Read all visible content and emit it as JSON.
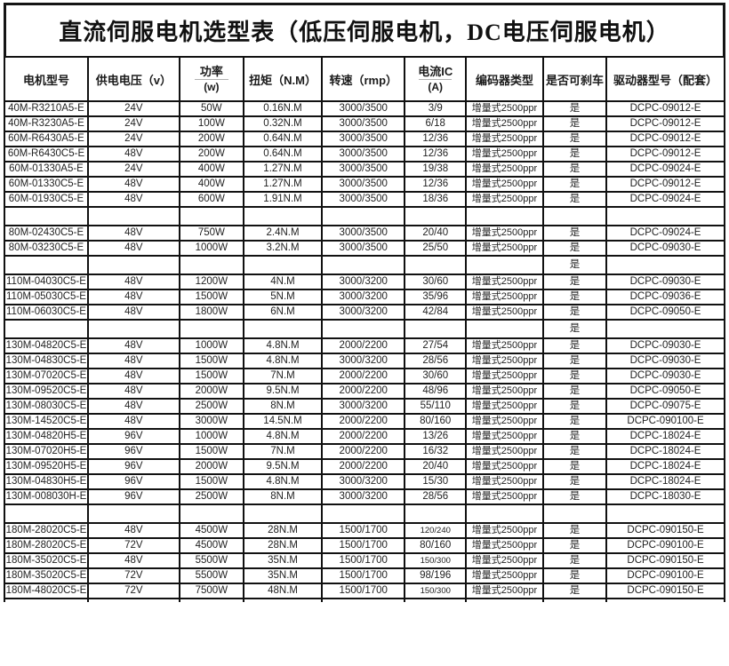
{
  "title": "直流伺服电机选型表（低压伺服电机，DC电压伺服电机）",
  "table": {
    "columns": [
      {
        "label": "电机型号"
      },
      {
        "label": "供电电压（v）"
      },
      {
        "label": "功率",
        "sub": "(w)"
      },
      {
        "label": "扭矩（N.M）"
      },
      {
        "label": "转速（rmp）"
      },
      {
        "label": "电流IC",
        "sub": "(A)"
      },
      {
        "label": "编码器类型"
      },
      {
        "label": "是否可刹车"
      },
      {
        "label": "驱动器型号（配套）"
      }
    ],
    "rows": [
      {
        "type": "data",
        "cells": [
          "40M-R3210A5-E",
          "24V",
          "50W",
          "0.16N.M",
          "3000/3500",
          "3/9",
          "增量式2500ppr",
          "是",
          "DCPC-09012-E"
        ]
      },
      {
        "type": "data",
        "cells": [
          "40M-R3230A5-E",
          "24V",
          "100W",
          "0.32N.M",
          "3000/3500",
          "6/18",
          "增量式2500ppr",
          "是",
          "DCPC-09012-E"
        ]
      },
      {
        "type": "data",
        "cells": [
          "60M-R6430A5-E",
          "24V",
          "200W",
          "0.64N.M",
          "3000/3500",
          "12/36",
          "增量式2500ppr",
          "是",
          "DCPC-09012-E"
        ]
      },
      {
        "type": "data",
        "cells": [
          "60M-R6430C5-E",
          "48V",
          "200W",
          "0.64N.M",
          "3000/3500",
          "12/36",
          "增量式2500ppr",
          "是",
          "DCPC-09012-E"
        ]
      },
      {
        "type": "data",
        "cells": [
          "60M-01330A5-E",
          "24V",
          "400W",
          "1.27N.M",
          "3000/3500",
          "19/38",
          "增量式2500ppr",
          "是",
          "DCPC-09024-E"
        ]
      },
      {
        "type": "data",
        "cells": [
          "60M-01330C5-E",
          "48V",
          "400W",
          "1.27N.M",
          "3000/3500",
          "12/36",
          "增量式2500ppr",
          "是",
          "DCPC-09012-E"
        ]
      },
      {
        "type": "data",
        "cells": [
          "60M-01930C5-E",
          "48V",
          "600W",
          "1.91N.M",
          "3000/3500",
          "18/36",
          "增量式2500ppr",
          "是",
          "DCPC-09024-E"
        ]
      },
      {
        "type": "empty",
        "cells": [
          "",
          "",
          "",
          "",
          "",
          "",
          "",
          "",
          ""
        ]
      },
      {
        "type": "data",
        "cells": [
          "80M-02430C5-E",
          "48V",
          "750W",
          "2.4N.M",
          "3000/3500",
          "20/40",
          "增量式2500ppr",
          "是",
          "DCPC-09024-E"
        ]
      },
      {
        "type": "data",
        "cells": [
          "80M-03230C5-E",
          "48V",
          "1000W",
          "3.2N.M",
          "3000/3500",
          "25/50",
          "增量式2500ppr",
          "是",
          "DCPC-09030-E"
        ]
      },
      {
        "type": "empty",
        "cells": [
          "",
          "",
          "",
          "",
          "",
          "",
          "",
          "是",
          ""
        ]
      },
      {
        "type": "data",
        "cells": [
          "110M-04030C5-E",
          "48V",
          "1200W",
          "4N.M",
          "3000/3200",
          "30/60",
          "增量式2500ppr",
          "是",
          "DCPC-09030-E"
        ]
      },
      {
        "type": "data",
        "cells": [
          "110M-05030C5-E",
          "48V",
          "1500W",
          "5N.M",
          "3000/3200",
          "35/96",
          "增量式2500ppr",
          "是",
          "DCPC-09036-E"
        ]
      },
      {
        "type": "data",
        "cells": [
          "110M-06030C5-E",
          "48V",
          "1800W",
          "6N.M",
          "3000/3200",
          "42/84",
          "增量式2500ppr",
          "是",
          "DCPC-09050-E"
        ]
      },
      {
        "type": "empty",
        "cells": [
          "",
          "",
          "",
          "",
          "",
          "",
          "",
          "是",
          ""
        ]
      },
      {
        "type": "data",
        "cells": [
          "130M-04820C5-E",
          "48V",
          "1000W",
          "4.8N.M",
          "2000/2200",
          "27/54",
          "增量式2500ppr",
          "是",
          "DCPC-09030-E"
        ]
      },
      {
        "type": "data",
        "cells": [
          "130M-04830C5-E",
          "48V",
          "1500W",
          "4.8N.M",
          "3000/3200",
          "28/56",
          "增量式2500ppr",
          "是",
          "DCPC-09030-E"
        ]
      },
      {
        "type": "data",
        "cells": [
          "130M-07020C5-E",
          "48V",
          "1500W",
          "7N.M",
          "2000/2200",
          "30/60",
          "增量式2500ppr",
          "是",
          "DCPC-09030-E"
        ]
      },
      {
        "type": "data",
        "cells": [
          "130M-09520C5-E",
          "48V",
          "2000W",
          "9.5N.M",
          "2000/2200",
          "48/96",
          "增量式2500ppr",
          "是",
          "DCPC-09050-E"
        ]
      },
      {
        "type": "data",
        "cells": [
          "130M-08030C5-E",
          "48V",
          "2500W",
          "8N.M",
          "3000/3200",
          "55/110",
          "增量式2500ppr",
          "是",
          "DCPC-09075-E"
        ]
      },
      {
        "type": "data",
        "cells": [
          "130M-14520C5-E",
          "48V",
          "3000W",
          "14.5N.M",
          "2000/2200",
          "80/160",
          "增量式2500ppr",
          "是",
          "DCPC-090100-E"
        ]
      },
      {
        "type": "data",
        "cells": [
          "130M-04820H5-E",
          "96V",
          "1000W",
          "4.8N.M",
          "2000/2200",
          "13/26",
          "增量式2500ppr",
          "是",
          "DCPC-18024-E"
        ]
      },
      {
        "type": "data",
        "cells": [
          "130M-07020H5-E",
          "96V",
          "1500W",
          "7N.M",
          "2000/2200",
          "16/32",
          "增量式2500ppr",
          "是",
          "DCPC-18024-E"
        ]
      },
      {
        "type": "data",
        "cells": [
          "130M-09520H5-E",
          "96V",
          "2000W",
          "9.5N.M",
          "2000/2200",
          "20/40",
          "增量式2500ppr",
          "是",
          "DCPC-18024-E"
        ]
      },
      {
        "type": "data",
        "cells": [
          "130M-04830H5-E",
          "96V",
          "1500W",
          "4.8N.M",
          "3000/3200",
          "15/30",
          "增量式2500ppr",
          "是",
          "DCPC-18024-E"
        ]
      },
      {
        "type": "data",
        "cells": [
          "130M-008030H-E",
          "96V",
          "2500W",
          "8N.M",
          "3000/3200",
          "28/56",
          "增量式2500ppr",
          "是",
          "DCPC-18030-E"
        ]
      },
      {
        "type": "empty",
        "cells": [
          "",
          "",
          "",
          "",
          "",
          "",
          "",
          "",
          ""
        ]
      },
      {
        "type": "data",
        "cells": [
          "180M-28020C5-E",
          "48V",
          "4500W",
          "28N.M",
          "1500/1700",
          "120/240",
          "增量式2500ppr",
          "是",
          "DCPC-090150-E"
        ]
      },
      {
        "type": "data",
        "cells": [
          "180M-28020C5-E",
          "72V",
          "4500W",
          "28N.M",
          "1500/1700",
          "80/160",
          "增量式2500ppr",
          "是",
          "DCPC-090100-E"
        ]
      },
      {
        "type": "data",
        "cells": [
          "180M-35020C5-E",
          "48V",
          "5500W",
          "35N.M",
          "1500/1700",
          "150/300",
          "增量式2500ppr",
          "是",
          "DCPC-090150-E"
        ]
      },
      {
        "type": "data",
        "cells": [
          "180M-35020C5-E",
          "72V",
          "5500W",
          "35N.M",
          "1500/1700",
          "98/196",
          "增量式2500ppr",
          "是",
          "DCPC-090100-E"
        ]
      },
      {
        "type": "data",
        "cells": [
          "180M-48020C5-E",
          "72V",
          "7500W",
          "48N.M",
          "1500/1700",
          "150/300",
          "增量式2500ppr",
          "是",
          "DCPC-090150-E"
        ]
      },
      {
        "type": "partial",
        "cells": [
          "",
          "",
          "",
          "",
          "",
          "",
          "",
          "",
          ""
        ]
      }
    ]
  },
  "colors": {
    "border": "#111111",
    "text": "#222222",
    "background": "#ffffff"
  }
}
